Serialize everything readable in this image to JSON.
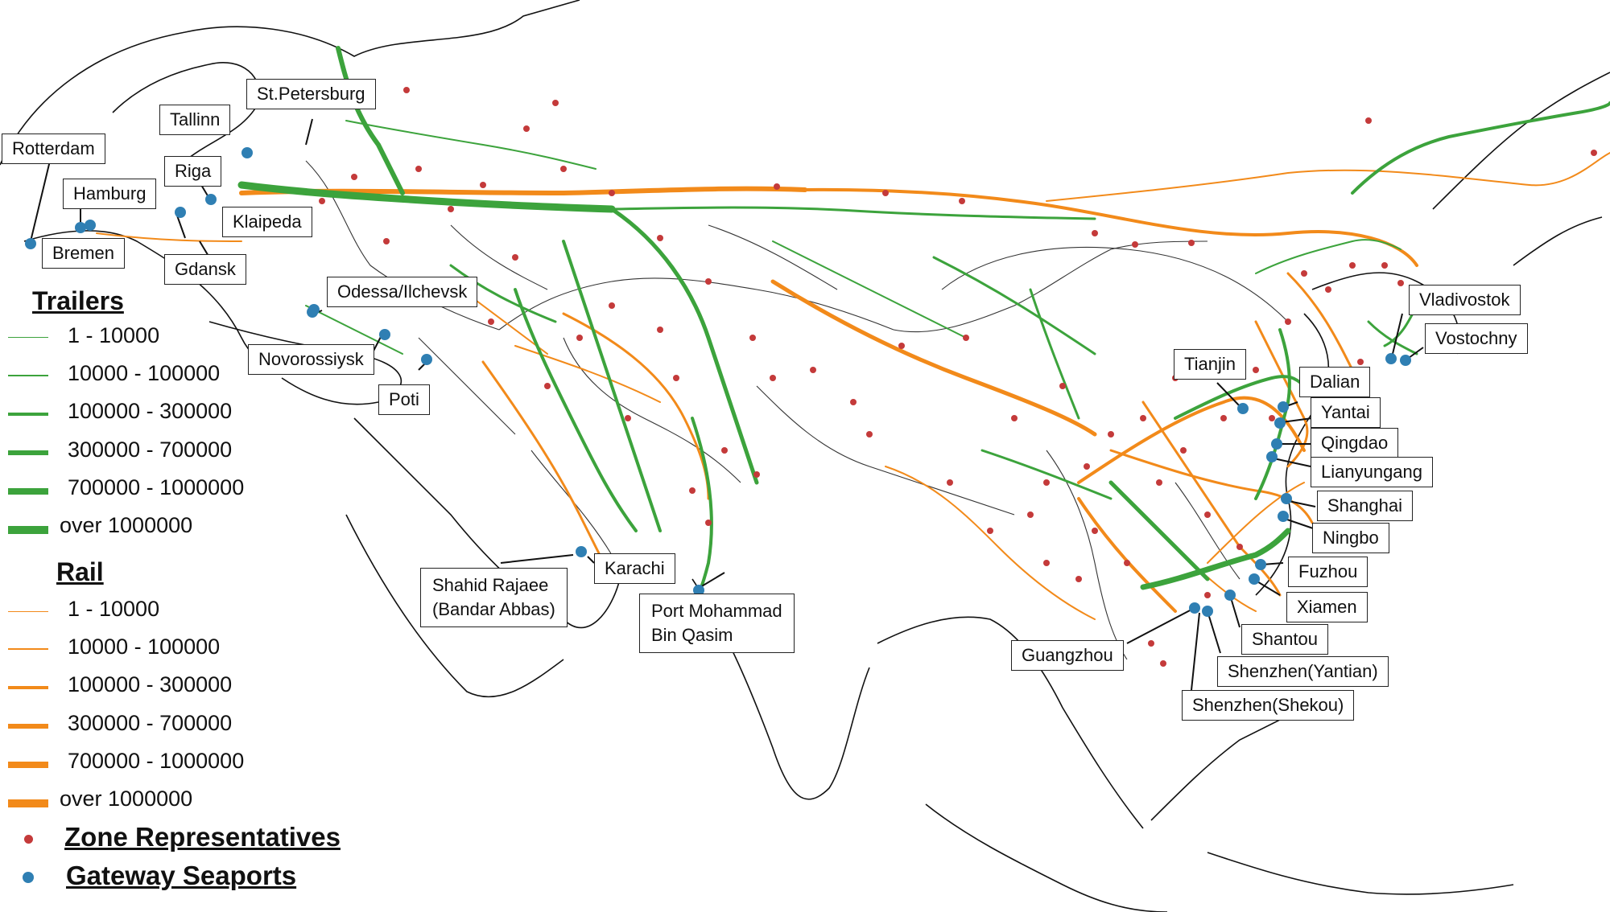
{
  "legend": {
    "trailers_title": "Trailers",
    "rail_title": "Rail",
    "ranges": [
      "1 - 10000",
      "10000 - 100000",
      "100000 - 300000",
      "300000 - 700000",
      "700000 - 1000000",
      "over 1000000"
    ],
    "zone_label": "Zone Representatives",
    "seaport_label": "Gateway Seaports",
    "trailer_color": "#3ca33c",
    "rail_color": "#f28a1a",
    "zone_color": "#c43a3a",
    "seaport_color": "#2f7fb3"
  },
  "ports": {
    "rotterdam": "Rotterdam",
    "tallinn": "Tallinn",
    "st_petersburg": "St.Petersburg",
    "riga": "Riga",
    "hamburg": "Hamburg",
    "klaipeda": "Klaipeda",
    "bremen": "Bremen",
    "gdansk": "Gdansk",
    "odessa": "Odessa/Ilchevsk",
    "novorossiysk": "Novorossiysk",
    "poti": "Poti",
    "shahid_rajaee_1": "Shahid Rajaee",
    "shahid_rajaee_2": "(Bandar Abbas)",
    "karachi": "Karachi",
    "port_qasim_1": "Port Mohammad",
    "port_qasim_2": "Bin Qasim",
    "vladivostok": "Vladivostok",
    "vostochny": "Vostochny",
    "tianjin": "Tianjin",
    "dalian": "Dalian",
    "yantai": "Yantai",
    "qingdao": "Qingdao",
    "lianyungang": "Lianyungang",
    "shanghai": "Shanghai",
    "ningbo": "Ningbo",
    "fuzhou": "Fuzhou",
    "xiamen": "Xiamen",
    "shantou": "Shantou",
    "guangzhou": "Guangzhou",
    "shenzhen_yantian": "Shenzhen(Yantian)",
    "shenzhen_shekou": "Shenzhen(Shekou)"
  }
}
